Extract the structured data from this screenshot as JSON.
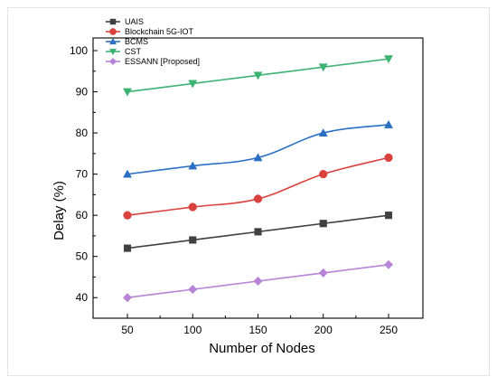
{
  "chart_data": {
    "type": "line",
    "xlabel": "Number of Nodes",
    "ylabel": "Delay (%)",
    "x": [
      50,
      100,
      150,
      200,
      250
    ],
    "xticks": [
      "50",
      "100",
      "150",
      "200",
      "250"
    ],
    "yticks": [
      "40",
      "50",
      "60",
      "70",
      "80",
      "90",
      "100"
    ],
    "xlim": [
      50,
      250
    ],
    "ylim": [
      35,
      100
    ],
    "grid": false,
    "legend_position": "top-left",
    "series": [
      {
        "name": "UAIS",
        "color": "#404040",
        "marker": "square",
        "values": [
          52,
          54,
          56,
          58,
          60
        ]
      },
      {
        "name": "Blockchain 5G-IOT",
        "color": "#d9413c",
        "marker": "circle",
        "values": [
          60,
          62,
          64,
          70,
          74
        ]
      },
      {
        "name": "BCMS",
        "color": "#2b6fc4",
        "marker": "triangle-up",
        "values": [
          70,
          72,
          74,
          80,
          82
        ]
      },
      {
        "name": "CST",
        "color": "#3cb371",
        "marker": "triangle-down",
        "values": [
          90,
          92,
          94,
          96,
          98
        ]
      },
      {
        "name": "ESSANN [Proposed]",
        "color": "#b784d8",
        "marker": "diamond",
        "values": [
          40,
          42,
          44,
          46,
          48
        ]
      }
    ]
  }
}
